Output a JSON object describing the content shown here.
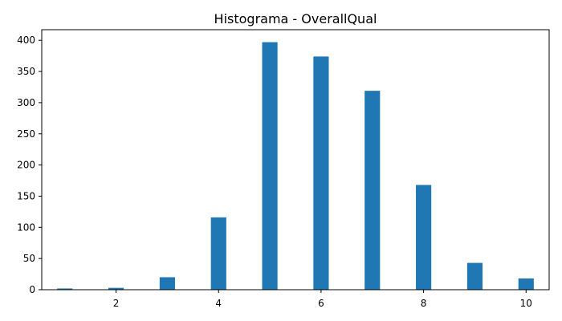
{
  "chart_data": {
    "type": "bar",
    "title": "Histograma - OverallQual",
    "xlabel": "",
    "ylabel": "",
    "xlim": [
      0.55,
      10.45
    ],
    "ylim": [
      0,
      417
    ],
    "grid": false,
    "bar_color": "#1f77b4",
    "bin_width": 0.3,
    "x": [
      1,
      2,
      3,
      4,
      5,
      6,
      7,
      8,
      9,
      10
    ],
    "values": [
      2,
      3,
      20,
      116,
      397,
      374,
      319,
      168,
      43,
      18
    ],
    "xticks": [
      2,
      4,
      6,
      8,
      10
    ],
    "yticks": [
      0,
      50,
      100,
      150,
      200,
      250,
      300,
      350,
      400
    ]
  }
}
